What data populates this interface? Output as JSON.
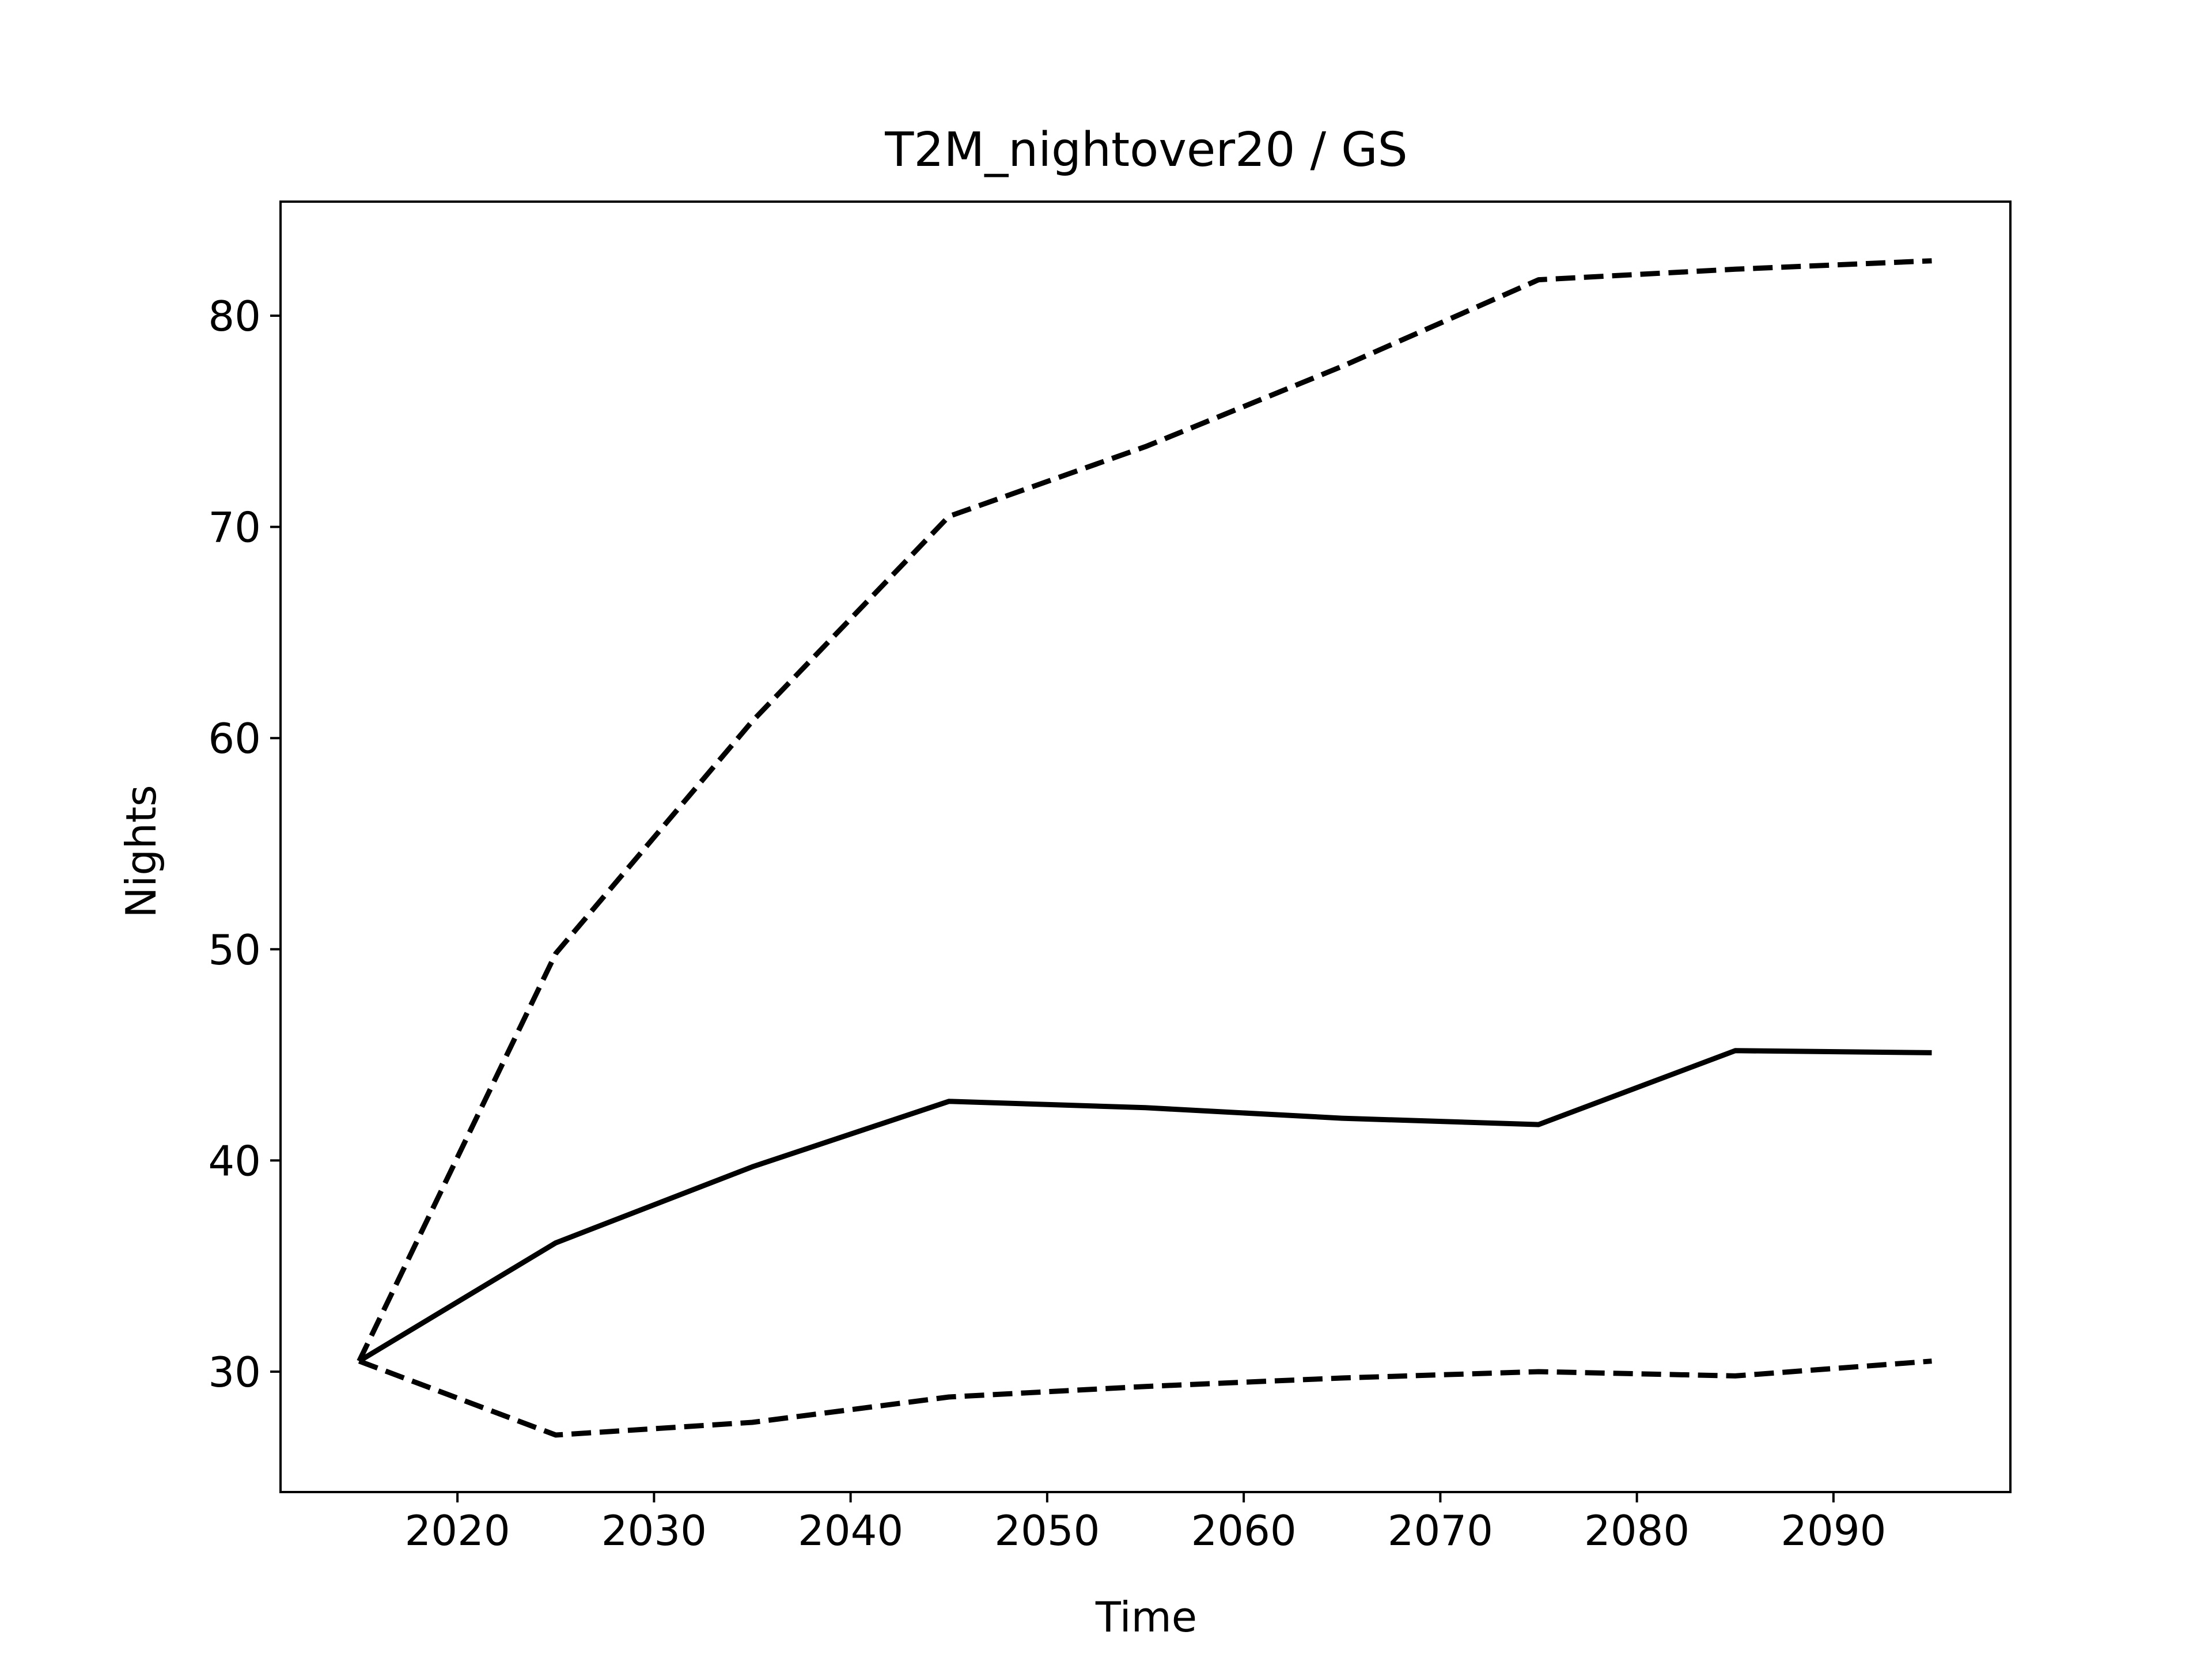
{
  "chart_data": {
    "type": "line",
    "title": "T2M_nightover20 / GS",
    "xlabel": "Time",
    "ylabel": "Nights",
    "xlim": [
      2011,
      2099
    ],
    "ylim": [
      24.3,
      85.4
    ],
    "xticks": [
      2020,
      2030,
      2040,
      2050,
      2060,
      2070,
      2080,
      2090
    ],
    "yticks": [
      30,
      40,
      50,
      60,
      70,
      80
    ],
    "x": [
      2015,
      2025,
      2035,
      2045,
      2055,
      2065,
      2075,
      2085,
      2095
    ],
    "grid": false,
    "legend": "none",
    "series": [
      {
        "style": "dashed",
        "color": "#000000",
        "values": [
          30.5,
          49.8,
          60.8,
          70.5,
          73.8,
          77.6,
          81.7,
          82.2,
          82.6
        ]
      },
      {
        "style": "solid",
        "color": "#000000",
        "values": [
          30.5,
          36.1,
          39.7,
          42.8,
          42.5,
          42.0,
          41.7,
          45.2,
          45.1
        ]
      },
      {
        "style": "dashed",
        "color": "#000000",
        "values": [
          30.5,
          27.0,
          27.6,
          28.8,
          29.3,
          29.7,
          30.0,
          29.8,
          30.5
        ]
      }
    ]
  }
}
